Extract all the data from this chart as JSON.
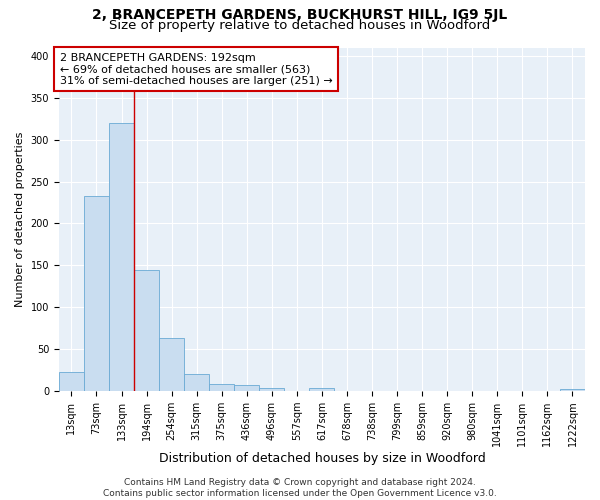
{
  "title": "2, BRANCEPETH GARDENS, BUCKHURST HILL, IG9 5JL",
  "subtitle": "Size of property relative to detached houses in Woodford",
  "xlabel": "Distribution of detached houses by size in Woodford",
  "ylabel": "Number of detached properties",
  "bar_color": "#c9ddf0",
  "bar_edge_color": "#6aaad4",
  "background_color": "#e8f0f8",
  "grid_color": "#ffffff",
  "categories": [
    "13sqm",
    "73sqm",
    "133sqm",
    "194sqm",
    "254sqm",
    "315sqm",
    "375sqm",
    "436sqm",
    "496sqm",
    "557sqm",
    "617sqm",
    "678sqm",
    "738sqm",
    "799sqm",
    "859sqm",
    "920sqm",
    "980sqm",
    "1041sqm",
    "1101sqm",
    "1162sqm",
    "1222sqm"
  ],
  "values": [
    23,
    233,
    320,
    145,
    63,
    20,
    9,
    7,
    4,
    0,
    4,
    0,
    0,
    0,
    0,
    0,
    0,
    0,
    0,
    0,
    2
  ],
  "ylim": [
    0,
    410
  ],
  "yticks": [
    0,
    50,
    100,
    150,
    200,
    250,
    300,
    350,
    400
  ],
  "vline_x_index": 2.5,
  "annotation_text": "2 BRANCEPETH GARDENS: 192sqm\n← 69% of detached houses are smaller (563)\n31% of semi-detached houses are larger (251) →",
  "annotation_box_color": "#ffffff",
  "annotation_border_color": "#cc0000",
  "vline_color": "#cc0000",
  "footer_line1": "Contains HM Land Registry data © Crown copyright and database right 2024.",
  "footer_line2": "Contains public sector information licensed under the Open Government Licence v3.0.",
  "title_fontsize": 10,
  "subtitle_fontsize": 9.5,
  "tick_fontsize": 7,
  "ylabel_fontsize": 8,
  "xlabel_fontsize": 9,
  "annotation_fontsize": 8,
  "footer_fontsize": 6.5
}
